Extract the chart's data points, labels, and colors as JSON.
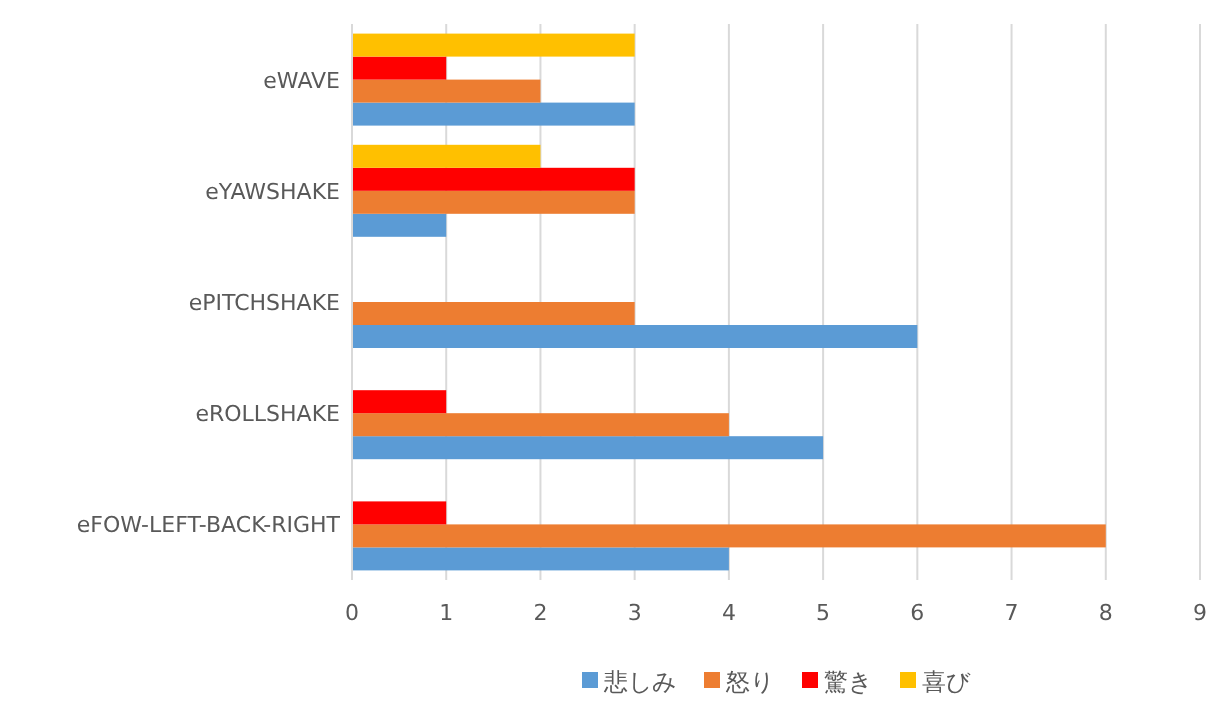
{
  "chart_data": {
    "type": "bar",
    "orientation": "horizontal",
    "categories": [
      "eWAVE",
      "eYAWSHAKE",
      "ePITCHSHAKE",
      "eROLLSHAKE",
      "eFOW-LEFT-BACK-RIGHT"
    ],
    "series": [
      {
        "name": "悲しみ",
        "color": "#5b9bd5",
        "values": [
          3,
          1,
          6,
          5,
          4
        ]
      },
      {
        "name": "怒り",
        "color": "#ed7d31",
        "values": [
          2,
          3,
          3,
          4,
          8
        ]
      },
      {
        "name": "驚き",
        "color": "#ff0000",
        "values": [
          1,
          3,
          null,
          1,
          1
        ]
      },
      {
        "name": "喜び",
        "color": "#ffc000",
        "values": [
          3,
          2,
          null,
          null,
          null
        ]
      }
    ],
    "xlim": [
      0,
      9
    ],
    "xticks": [
      0,
      1,
      2,
      3,
      4,
      5,
      6,
      7,
      8,
      9
    ],
    "grid": "x",
    "legend": "bottom"
  }
}
